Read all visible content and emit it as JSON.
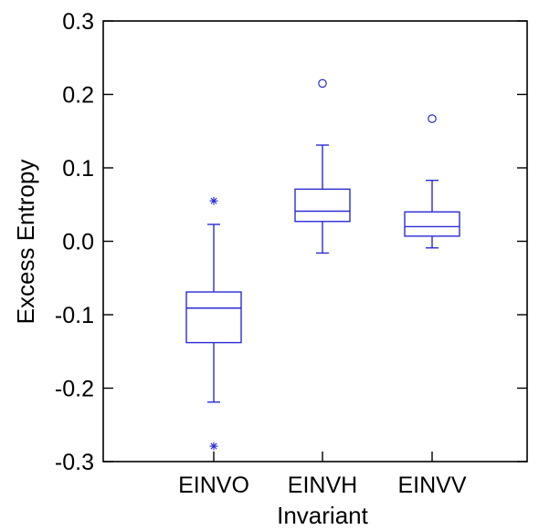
{
  "chart_data": {
    "type": "box",
    "title": "",
    "xlabel": "Invariant",
    "ylabel": "Excess Entropy",
    "ylim": [
      -0.3,
      0.3
    ],
    "yticks": [
      0.3,
      0.2,
      0.1,
      0.0,
      -0.1,
      -0.2,
      -0.3
    ],
    "ytick_labels": [
      "0.3",
      "0.2",
      "0.1",
      "0.0",
      "-0.1",
      "-0.2",
      "-0.3"
    ],
    "categories": [
      "EINVO",
      "EINVH",
      "EINVV"
    ],
    "grid": false,
    "box_color": "#2b2bd6",
    "axis_color": "#000000",
    "boxes": [
      {
        "category": "EINVO",
        "whisker_low": -0.219,
        "q1": -0.138,
        "median": -0.091,
        "q3": -0.069,
        "whisker_high": 0.023,
        "outliers": [
          {
            "value": 0.055,
            "marker": "star"
          },
          {
            "value": -0.279,
            "marker": "star"
          }
        ]
      },
      {
        "category": "EINVH",
        "whisker_low": -0.016,
        "q1": 0.027,
        "median": 0.041,
        "q3": 0.071,
        "whisker_high": 0.131,
        "outliers": [
          {
            "value": 0.215,
            "marker": "circle"
          }
        ]
      },
      {
        "category": "EINVV",
        "whisker_low": -0.009,
        "q1": 0.007,
        "median": 0.02,
        "q3": 0.04,
        "whisker_high": 0.083,
        "outliers": [
          {
            "value": 0.167,
            "marker": "circle"
          }
        ]
      }
    ]
  }
}
